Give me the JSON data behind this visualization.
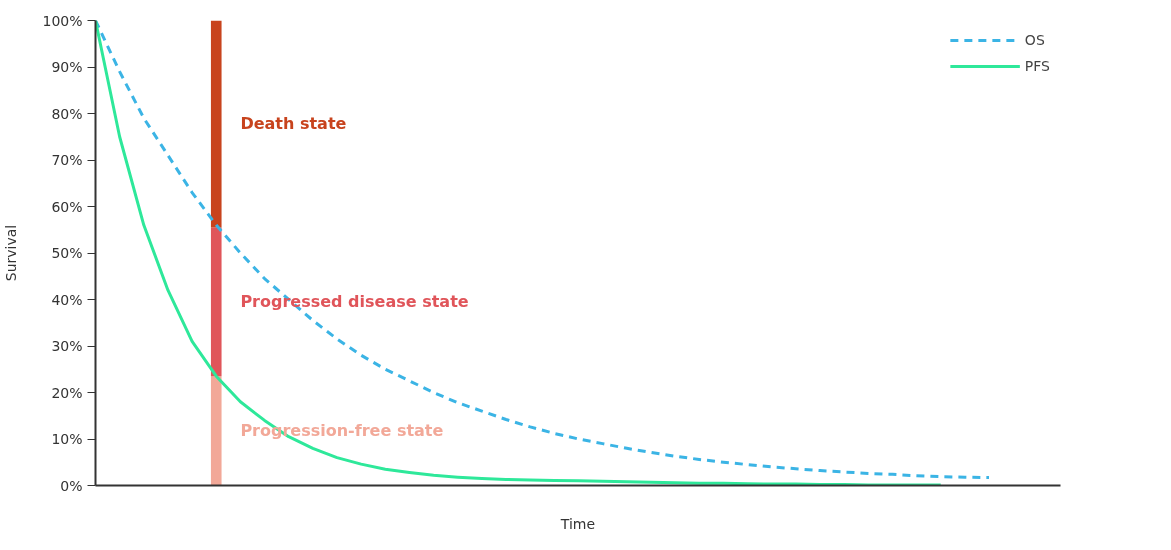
{
  "chart_data": {
    "type": "line",
    "xlabel": "Time",
    "ylabel": "Survival",
    "categories": [
      null,
      null,
      null,
      null,
      null,
      null,
      null,
      null,
      null,
      null,
      null,
      null,
      null,
      null,
      null,
      null,
      null,
      null,
      null,
      null,
      null,
      null,
      null,
      null,
      null,
      null,
      null,
      null,
      null,
      null,
      null,
      null,
      null,
      null,
      null,
      null,
      null,
      null
    ],
    "series": [
      {
        "name": "OS",
        "color": "#3bb4e5",
        "line_style": "dashed",
        "values": [
          100,
          89,
          79,
          71,
          63,
          56,
          50,
          44.5,
          40,
          35.5,
          31.5,
          28,
          25,
          22.5,
          20,
          17.8,
          16,
          14.2,
          12.6,
          11.2,
          10,
          9,
          8,
          7.1,
          6.3,
          5.6,
          5,
          4.5,
          4,
          3.6,
          3.2,
          2.9,
          2.6,
          2.4,
          2.1,
          1.9,
          1.8,
          1.7
        ]
      },
      {
        "name": "PFS",
        "color": "#2ee89a",
        "line_style": "solid",
        "values": [
          100,
          75,
          56,
          42,
          31,
          23.5,
          18,
          14,
          10.5,
          8,
          6,
          4.6,
          3.5,
          2.8,
          2.2,
          1.8,
          1.5,
          1.3,
          1.2,
          1.1,
          1,
          0.9,
          0.8,
          0.7,
          0.6,
          0.5,
          0.5,
          0.4,
          0.3,
          0.3,
          0.2,
          0.2,
          0.1,
          0.1,
          0.1,
          0.1,
          null,
          null
        ]
      },
      {
        "name": "Progression-free state",
        "type": "bar",
        "color": "#f2a898",
        "values": [
          null,
          null,
          null,
          null,
          null,
          23.5,
          null,
          null,
          null,
          null,
          null,
          null,
          null,
          null,
          null,
          null,
          null,
          null,
          null,
          null,
          null,
          null,
          null,
          null,
          null,
          null,
          null,
          null,
          null,
          null,
          null,
          null,
          null,
          null,
          null,
          null,
          null,
          null
        ]
      },
      {
        "name": "Progressed disease state",
        "type": "bar",
        "color": "#e0555a",
        "values": [
          null,
          null,
          null,
          null,
          null,
          32,
          null,
          null,
          null,
          null,
          null,
          null,
          null,
          null,
          null,
          null,
          null,
          null,
          null,
          null,
          null,
          null,
          null,
          null,
          null,
          null,
          null,
          null,
          null,
          null,
          null,
          null,
          null,
          null,
          null,
          null,
          null,
          null
        ]
      },
      {
        "name": "Death state",
        "type": "bar",
        "color": "#c8431d",
        "values": [
          null,
          null,
          null,
          null,
          null,
          44.5,
          null,
          null,
          null,
          null,
          null,
          null,
          null,
          null,
          null,
          null,
          null,
          null,
          null,
          null,
          null,
          null,
          null,
          null,
          null,
          null,
          null,
          null,
          null,
          null,
          null,
          null,
          null,
          null,
          null,
          null,
          null,
          null
        ]
      }
    ],
    "stacked": true,
    "ylim": [
      0,
      100
    ],
    "yticks": [
      {
        "value": 0,
        "label": "0%"
      },
      {
        "value": 10,
        "label": "10%"
      },
      {
        "value": 20,
        "label": "20%"
      },
      {
        "value": 30,
        "label": "30%"
      },
      {
        "value": 40,
        "label": "40%"
      },
      {
        "value": 50,
        "label": "50%"
      },
      {
        "value": 60,
        "label": "60%"
      },
      {
        "value": 70,
        "label": "70%"
      },
      {
        "value": 80,
        "label": "80%"
      },
      {
        "value": 90,
        "label": "90%"
      },
      {
        "value": 100,
        "label": "100%"
      }
    ],
    "tick_labels": "y",
    "grid": false,
    "legend": "top right"
  }
}
